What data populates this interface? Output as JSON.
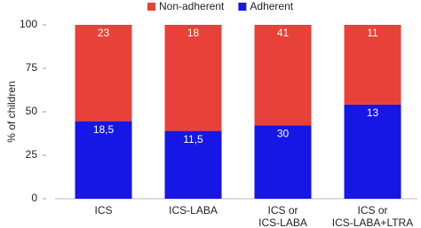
{
  "chart_data": {
    "type": "bar",
    "stacking": "percent",
    "y_label": "% of children",
    "categories": [
      "ICS",
      "ICS-LABA",
      "ICS or\nICS-LABA",
      "ICS or\nICS-LABA+LTRA"
    ],
    "series": [
      {
        "name": "Non-adherent",
        "color": "#e8413a",
        "values": [
          23,
          18,
          41,
          11
        ]
      },
      {
        "name": "Adherent",
        "color": "#1616e6",
        "values": [
          18.5,
          11.5,
          30,
          13
        ],
        "value_labels": [
          "18,5",
          "11,5",
          "30",
          "13"
        ]
      }
    ],
    "ylim": [
      0,
      100
    ],
    "yticks": [
      0,
      25,
      50,
      75,
      100
    ],
    "legend": "top"
  }
}
